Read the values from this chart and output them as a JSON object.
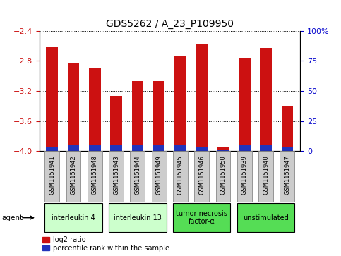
{
  "title": "GDS5262 / A_23_P109950",
  "samples": [
    "GSM1151941",
    "GSM1151942",
    "GSM1151948",
    "GSM1151943",
    "GSM1151944",
    "GSM1151949",
    "GSM1151945",
    "GSM1151946",
    "GSM1151950",
    "GSM1151939",
    "GSM1151940",
    "GSM1151947"
  ],
  "log2_ratio": [
    -2.62,
    -2.84,
    -2.9,
    -3.27,
    -3.07,
    -3.07,
    -2.73,
    -2.58,
    -3.95,
    -2.76,
    -2.63,
    -3.4
  ],
  "percentile": [
    3.5,
    4.5,
    5.0,
    4.5,
    4.5,
    4.5,
    4.5,
    3.5,
    1.5,
    4.5,
    4.5,
    3.5
  ],
  "ylim_left": [
    -4.0,
    -2.4
  ],
  "ylim_right": [
    0,
    100
  ],
  "yticks_left": [
    -4.0,
    -3.6,
    -3.2,
    -2.8,
    -2.4
  ],
  "yticks_right": [
    0,
    25,
    50,
    75,
    100
  ],
  "bar_bottom": -4.0,
  "bar_color_red": "#cc1111",
  "bar_color_blue": "#2233bb",
  "bar_width": 0.55,
  "groups": [
    {
      "label": "interleukin 4",
      "indices": [
        0,
        1,
        2
      ],
      "color": "#ccffcc"
    },
    {
      "label": "interleukin 13",
      "indices": [
        3,
        4,
        5
      ],
      "color": "#ccffcc"
    },
    {
      "label": "tumor necrosis\nfactor-α",
      "indices": [
        6,
        7,
        8
      ],
      "color": "#55dd55"
    },
    {
      "label": "unstimulated",
      "indices": [
        9,
        10,
        11
      ],
      "color": "#55dd55"
    }
  ],
  "agent_label": "agent",
  "legend_red": "log2 ratio",
  "legend_blue": "percentile rank within the sample",
  "bg_color": "#ffffff",
  "tick_label_color_left": "#cc1111",
  "tick_label_color_right": "#0000cc",
  "sample_bg_color": "#cccccc",
  "title_fontsize": 10
}
